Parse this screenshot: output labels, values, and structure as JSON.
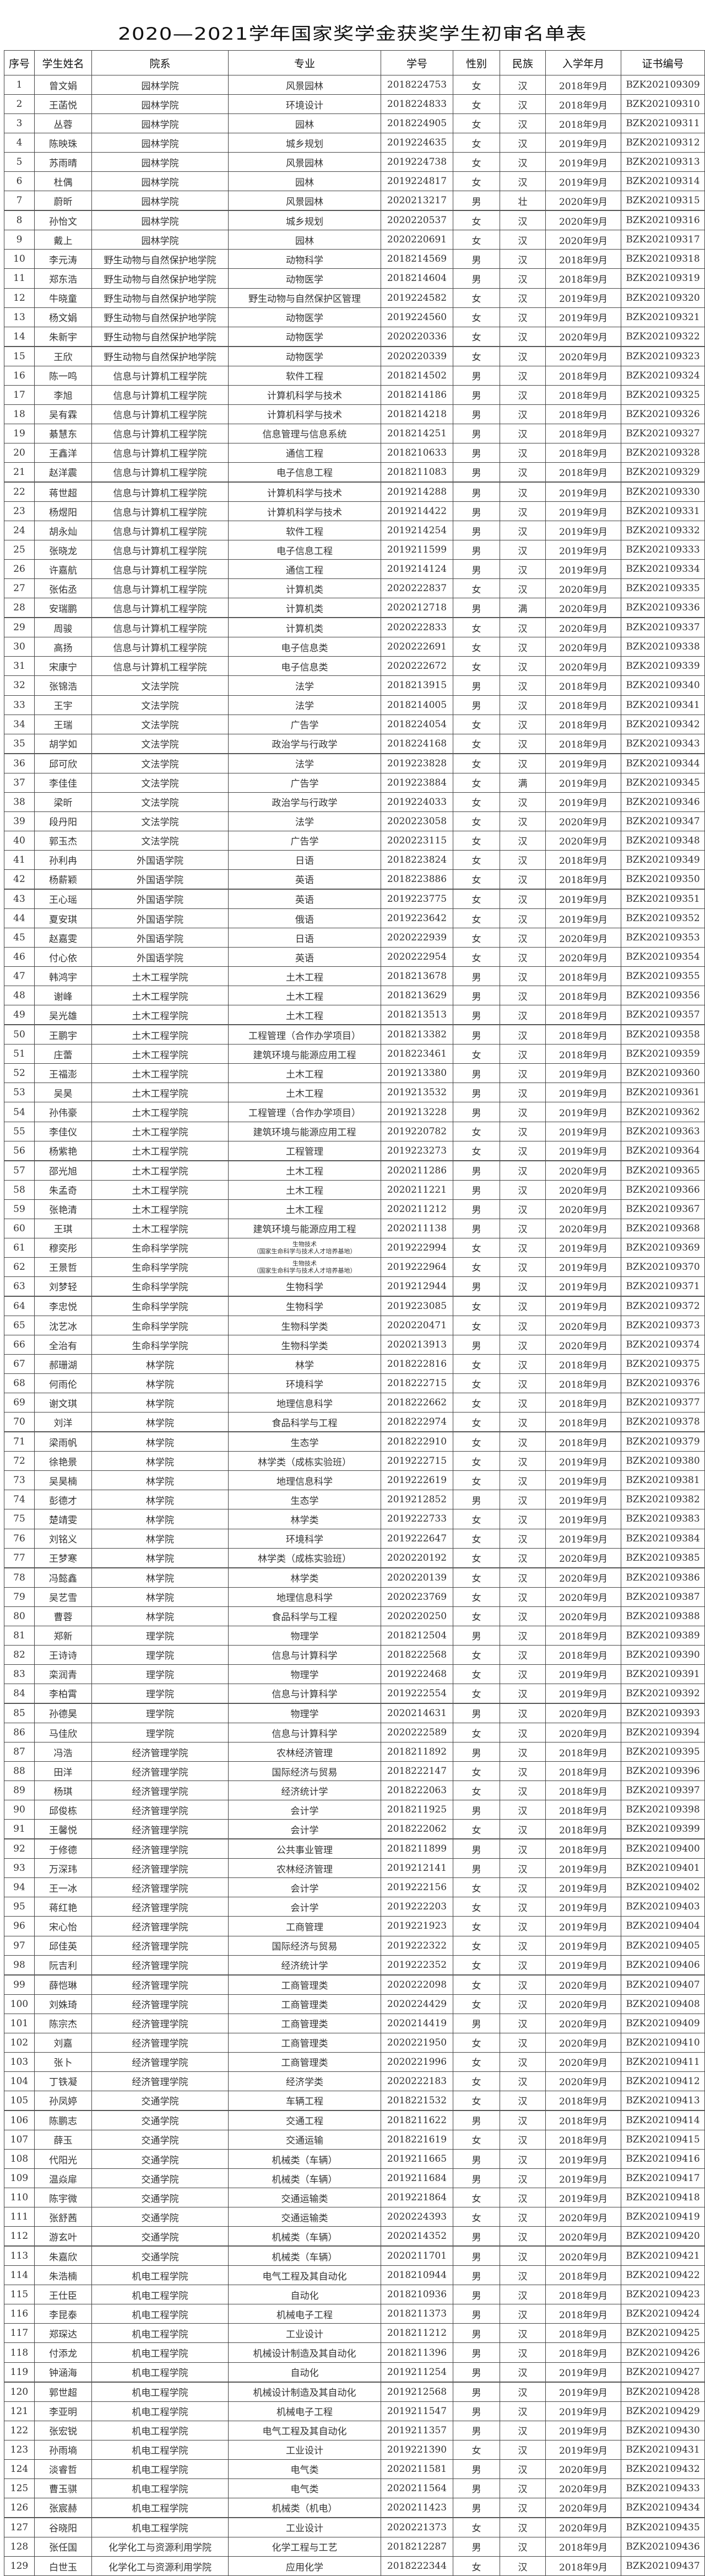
{
  "title": "2020—2021学年国家奖学金获奖学生初审名单表",
  "columns": [
    "序号",
    "学生姓名",
    "院系",
    "专业",
    "学号",
    "性别",
    "民族",
    "入学年月",
    "证书编号"
  ],
  "rows": [
    [
      "1",
      "曾文娟",
      "园林学院",
      "风景园林",
      "2018224753",
      "女",
      "汉",
      "2018年9月",
      "BZK202109309"
    ],
    [
      "2",
      "王菡悦",
      "园林学院",
      "环境设计",
      "2018224833",
      "女",
      "汉",
      "2018年9月",
      "BZK202109310"
    ],
    [
      "3",
      "丛蓉",
      "园林学院",
      "园林",
      "2018224905",
      "女",
      "汉",
      "2018年9月",
      "BZK202109311"
    ],
    [
      "4",
      "陈映珠",
      "园林学院",
      "城乡规划",
      "2019224635",
      "女",
      "汉",
      "2019年9月",
      "BZK202109312"
    ],
    [
      "5",
      "苏雨晴",
      "园林学院",
      "风景园林",
      "2019224738",
      "女",
      "汉",
      "2019年9月",
      "BZK202109313"
    ],
    [
      "6",
      "杜偶",
      "园林学院",
      "园林",
      "2019224817",
      "女",
      "汉",
      "2019年9月",
      "BZK202109314"
    ],
    [
      "7",
      "蔚昕",
      "园林学院",
      "风景园林",
      "2020213217",
      "男",
      "壮",
      "2020年9月",
      "BZK202109315"
    ],
    [
      "8",
      "孙怡文",
      "园林学院",
      "城乡规划",
      "2020220537",
      "女",
      "汉",
      "2020年9月",
      "BZK202109316"
    ],
    [
      "9",
      "戴上",
      "园林学院",
      "园林",
      "2020220691",
      "女",
      "汉",
      "2020年9月",
      "BZK202109317"
    ],
    [
      "10",
      "李元涛",
      "野生动物与自然保护地学院",
      "动物科学",
      "2018214569",
      "男",
      "汉",
      "2018年9月",
      "BZK202109318"
    ],
    [
      "11",
      "郑东浩",
      "野生动物与自然保护地学院",
      "动物医学",
      "2018214604",
      "男",
      "汉",
      "2018年9月",
      "BZK202109319"
    ],
    [
      "12",
      "牛晓童",
      "野生动物与自然保护地学院",
      "野生动物与自然保护区管理",
      "2019224582",
      "女",
      "汉",
      "2019年9月",
      "BZK202109320"
    ],
    [
      "13",
      "杨文娟",
      "野生动物与自然保护地学院",
      "动物医学",
      "2019224560",
      "女",
      "汉",
      "2019年9月",
      "BZK202109321"
    ],
    [
      "14",
      "朱新宇",
      "野生动物与自然保护地学院",
      "动物医学",
      "2020220336",
      "女",
      "汉",
      "2020年9月",
      "BZK202109322"
    ],
    [
      "15",
      "王欣",
      "野生动物与自然保护地学院",
      "动物医学",
      "2020220339",
      "女",
      "汉",
      "2020年9月",
      "BZK202109323"
    ],
    [
      "16",
      "陈一鸣",
      "信息与计算机工程学院",
      "软件工程",
      "2018214502",
      "男",
      "汉",
      "2018年9月",
      "BZK202109324"
    ],
    [
      "17",
      "李旭",
      "信息与计算机工程学院",
      "计算机科学与技术",
      "2018214186",
      "男",
      "汉",
      "2018年9月",
      "BZK202109325"
    ],
    [
      "18",
      "吴有霖",
      "信息与计算机工程学院",
      "计算机科学与技术",
      "2018214218",
      "男",
      "汉",
      "2018年9月",
      "BZK202109326"
    ],
    [
      "19",
      "綦慧东",
      "信息与计算机工程学院",
      "信息管理与信息系统",
      "2018214251",
      "男",
      "汉",
      "2018年9月",
      "BZK202109327"
    ],
    [
      "20",
      "王鑫洋",
      "信息与计算机工程学院",
      "通信工程",
      "2018210633",
      "男",
      "汉",
      "2018年9月",
      "BZK202109328"
    ],
    [
      "21",
      "赵洋震",
      "信息与计算机工程学院",
      "电子信息工程",
      "2018211083",
      "男",
      "汉",
      "2018年9月",
      "BZK202109329"
    ],
    [
      "22",
      "蒋世超",
      "信息与计算机工程学院",
      "计算机科学与技术",
      "2019214288",
      "男",
      "汉",
      "2019年9月",
      "BZK202109330"
    ],
    [
      "23",
      "杨煜阳",
      "信息与计算机工程学院",
      "计算机科学与技术",
      "2019214422",
      "男",
      "汉",
      "2019年9月",
      "BZK202109331"
    ],
    [
      "24",
      "胡永灿",
      "信息与计算机工程学院",
      "软件工程",
      "2019214254",
      "男",
      "汉",
      "2019年9月",
      "BZK202109332"
    ],
    [
      "25",
      "张晓龙",
      "信息与计算机工程学院",
      "电子信息工程",
      "2019211599",
      "男",
      "汉",
      "2019年9月",
      "BZK202109333"
    ],
    [
      "26",
      "许嘉航",
      "信息与计算机工程学院",
      "通信工程",
      "2019214124",
      "男",
      "汉",
      "2019年9月",
      "BZK202109334"
    ],
    [
      "27",
      "张佑丞",
      "信息与计算机工程学院",
      "计算机类",
      "2020222837",
      "女",
      "汉",
      "2020年9月",
      "BZK202109335"
    ],
    [
      "28",
      "安瑞鹏",
      "信息与计算机工程学院",
      "计算机类",
      "2020212718",
      "男",
      "满",
      "2020年9月",
      "BZK202109336"
    ],
    [
      "29",
      "周骏",
      "信息与计算机工程学院",
      "计算机类",
      "2020222833",
      "女",
      "汉",
      "2020年9月",
      "BZK202109337"
    ],
    [
      "30",
      "高扬",
      "信息与计算机工程学院",
      "电子信息类",
      "2020222691",
      "女",
      "汉",
      "2020年9月",
      "BZK202109338"
    ],
    [
      "31",
      "宋康宁",
      "信息与计算机工程学院",
      "电子信息类",
      "2020222672",
      "女",
      "汉",
      "2020年9月",
      "BZK202109339"
    ],
    [
      "32",
      "张锦浩",
      "文法学院",
      "法学",
      "2018213915",
      "男",
      "汉",
      "2018年9月",
      "BZK202109340"
    ],
    [
      "33",
      "王宇",
      "文法学院",
      "法学",
      "2018214005",
      "男",
      "汉",
      "2018年9月",
      "BZK202109341"
    ],
    [
      "34",
      "王瑞",
      "文法学院",
      "广告学",
      "2018224054",
      "女",
      "汉",
      "2018年9月",
      "BZK202109342"
    ],
    [
      "35",
      "胡学如",
      "文法学院",
      "政治学与行政学",
      "2018224168",
      "女",
      "汉",
      "2018年9月",
      "BZK202109343"
    ],
    [
      "36",
      "邱可欣",
      "文法学院",
      "法学",
      "2019223828",
      "女",
      "汉",
      "2019年9月",
      "BZK202109344"
    ],
    [
      "37",
      "李佳佳",
      "文法学院",
      "广告学",
      "2019223884",
      "女",
      "满",
      "2019年9月",
      "BZK202109345"
    ],
    [
      "38",
      "梁昕",
      "文法学院",
      "政治学与行政学",
      "2019224033",
      "女",
      "汉",
      "2019年9月",
      "BZK202109346"
    ],
    [
      "39",
      "段丹阳",
      "文法学院",
      "法学",
      "2020223058",
      "女",
      "汉",
      "2020年9月",
      "BZK202109347"
    ],
    [
      "40",
      "郭玉杰",
      "文法学院",
      "广告学",
      "2020223115",
      "女",
      "汉",
      "2020年9月",
      "BZK202109348"
    ],
    [
      "41",
      "孙利冉",
      "外国语学院",
      "日语",
      "2018223824",
      "女",
      "汉",
      "2018年9月",
      "BZK202109349"
    ],
    [
      "42",
      "杨薪颖",
      "外国语学院",
      "英语",
      "2018223886",
      "女",
      "汉",
      "2018年9月",
      "BZK202109350"
    ],
    [
      "43",
      "王心瑶",
      "外国语学院",
      "英语",
      "2019223775",
      "女",
      "汉",
      "2019年9月",
      "BZK202109351"
    ],
    [
      "44",
      "夏安琪",
      "外国语学院",
      "俄语",
      "2019223642",
      "女",
      "汉",
      "2019年9月",
      "BZK202109352"
    ],
    [
      "45",
      "赵嘉雯",
      "外国语学院",
      "日语",
      "2020222939",
      "女",
      "汉",
      "2020年9月",
      "BZK202109353"
    ],
    [
      "46",
      "付心依",
      "外国语学院",
      "英语",
      "2020222954",
      "女",
      "汉",
      "2020年9月",
      "BZK202109354"
    ],
    [
      "47",
      "韩鸿宇",
      "土木工程学院",
      "土木工程",
      "2018213678",
      "男",
      "汉",
      "2018年9月",
      "BZK202109355"
    ],
    [
      "48",
      "谢峰",
      "土木工程学院",
      "土木工程",
      "2018213629",
      "男",
      "汉",
      "2018年9月",
      "BZK202109356"
    ],
    [
      "49",
      "吴光雄",
      "土木工程学院",
      "土木工程",
      "2018213513",
      "男",
      "汉",
      "2018年9月",
      "BZK202109357"
    ],
    [
      "50",
      "王鹏宇",
      "土木工程学院",
      "工程管理（合作办学项目）",
      "2018213382",
      "男",
      "汉",
      "2018年9月",
      "BZK202109358"
    ],
    [
      "51",
      "庄蕾",
      "土木工程学院",
      "建筑环境与能源应用工程",
      "2018223461",
      "女",
      "汉",
      "2018年9月",
      "BZK202109359"
    ],
    [
      "52",
      "王福澎",
      "土木工程学院",
      "土木工程",
      "2019213380",
      "男",
      "汉",
      "2019年9月",
      "BZK202109360"
    ],
    [
      "53",
      "吴昊",
      "土木工程学院",
      "土木工程",
      "2019213532",
      "男",
      "汉",
      "2019年9月",
      "BZK202109361"
    ],
    [
      "54",
      "孙伟豪",
      "土木工程学院",
      "工程管理（合作办学项目）",
      "2019213228",
      "男",
      "汉",
      "2019年9月",
      "BZK202109362"
    ],
    [
      "55",
      "李佳仪",
      "土木工程学院",
      "建筑环境与能源应用工程",
      "2019220782",
      "女",
      "汉",
      "2019年9月",
      "BZK202109363"
    ],
    [
      "56",
      "杨紫艳",
      "土木工程学院",
      "工程管理",
      "2019223273",
      "女",
      "汉",
      "2019年9月",
      "BZK202109364"
    ],
    [
      "57",
      "邵光旭",
      "土木工程学院",
      "土木工程",
      "2020211286",
      "男",
      "汉",
      "2020年9月",
      "BZK202109365"
    ],
    [
      "58",
      "朱孟奇",
      "土木工程学院",
      "土木工程",
      "2020211221",
      "男",
      "汉",
      "2020年9月",
      "BZK202109366"
    ],
    [
      "59",
      "张艳清",
      "土木工程学院",
      "土木工程",
      "2020211212",
      "男",
      "汉",
      "2020年9月",
      "BZK202109367"
    ],
    [
      "60",
      "王琪",
      "土木工程学院",
      "建筑环境与能源应用工程",
      "2020211138",
      "男",
      "汉",
      "2020年9月",
      "BZK202109368"
    ],
    [
      "61",
      "穆奕彤",
      "生命科学学院",
      "生物技术\n（国家生命科学与技术人才培养基地）",
      "2019222994",
      "女",
      "汉",
      "2019年9月",
      "BZK202109369"
    ],
    [
      "62",
      "王景哲",
      "生命科学学院",
      "生物技术\n（国家生命科学与技术人才培养基地）",
      "2019222964",
      "女",
      "汉",
      "2019年9月",
      "BZK202109370"
    ],
    [
      "63",
      "刘梦轻",
      "生命科学学院",
      "生物科学",
      "2019212944",
      "男",
      "汉",
      "2019年9月",
      "BZK202109371"
    ],
    [
      "64",
      "李忠悦",
      "生命科学学院",
      "生物科学",
      "2019223085",
      "女",
      "汉",
      "2019年9月",
      "BZK202109372"
    ],
    [
      "65",
      "沈艺冰",
      "生命科学学院",
      "生物科学类",
      "2020220471",
      "女",
      "汉",
      "2020年9月",
      "BZK202109373"
    ],
    [
      "66",
      "全治有",
      "生命科学学院",
      "生物科学类",
      "2020213913",
      "男",
      "汉",
      "2020年9月",
      "BZK202109374"
    ],
    [
      "67",
      "郝珊湖",
      "林学院",
      "林学",
      "2018222816",
      "女",
      "汉",
      "2018年9月",
      "BZK202109375"
    ],
    [
      "68",
      "何雨伦",
      "林学院",
      "环境科学",
      "2018222715",
      "女",
      "汉",
      "2018年9月",
      "BZK202109376"
    ],
    [
      "69",
      "谢文琪",
      "林学院",
      "地理信息科学",
      "2018222662",
      "女",
      "汉",
      "2018年9月",
      "BZK202109377"
    ],
    [
      "70",
      "刘洋",
      "林学院",
      "食品科学与工程",
      "2018222974",
      "女",
      "汉",
      "2018年9月",
      "BZK202109378"
    ],
    [
      "71",
      "梁雨帆",
      "林学院",
      "生态学",
      "2018222910",
      "女",
      "汉",
      "2018年9月",
      "BZK202109379"
    ],
    [
      "72",
      "徐艳景",
      "林学院",
      "林学类（成栋实验班）",
      "2019222715",
      "女",
      "汉",
      "2019年9月",
      "BZK202109380"
    ],
    [
      "73",
      "吴昊楠",
      "林学院",
      "地理信息科学",
      "2019222619",
      "女",
      "汉",
      "2019年9月",
      "BZK202109381"
    ],
    [
      "74",
      "彭德才",
      "林学院",
      "生态学",
      "2019212852",
      "男",
      "汉",
      "2019年9月",
      "BZK202109382"
    ],
    [
      "75",
      "楚靖雯",
      "林学院",
      "林学类",
      "2019222733",
      "女",
      "汉",
      "2019年9月",
      "BZK202109383"
    ],
    [
      "76",
      "刘铭义",
      "林学院",
      "环境科学",
      "2019222647",
      "女",
      "汉",
      "2019年9月",
      "BZK202109384"
    ],
    [
      "77",
      "王梦寒",
      "林学院",
      "林学类（成栋实验班）",
      "2020220192",
      "女",
      "汉",
      "2020年9月",
      "BZK202109385"
    ],
    [
      "78",
      "冯懿鑫",
      "林学院",
      "林学类",
      "2020220139",
      "女",
      "汉",
      "2020年9月",
      "BZK202109386"
    ],
    [
      "79",
      "吴艺雪",
      "林学院",
      "地理信息科学",
      "2020223769",
      "女",
      "汉",
      "2020年9月",
      "BZK202109387"
    ],
    [
      "80",
      "曹蓉",
      "林学院",
      "食品科学与工程",
      "2020220250",
      "女",
      "汉",
      "2020年9月",
      "BZK202109388"
    ],
    [
      "81",
      "郑新",
      "理学院",
      "物理学",
      "2018212504",
      "男",
      "汉",
      "2018年9月",
      "BZK202109389"
    ],
    [
      "82",
      "王诗诗",
      "理学院",
      "信息与计算科学",
      "2018222568",
      "女",
      "汉",
      "2018年9月",
      "BZK202109390"
    ],
    [
      "83",
      "栾润青",
      "理学院",
      "物理学",
      "2019222468",
      "女",
      "汉",
      "2019年9月",
      "BZK202109391"
    ],
    [
      "84",
      "李柏霄",
      "理学院",
      "信息与计算科学",
      "2019222554",
      "女",
      "汉",
      "2019年9月",
      "BZK202109392"
    ],
    [
      "85",
      "孙德昊",
      "理学院",
      "物理学",
      "2020214631",
      "男",
      "汉",
      "2020年9月",
      "BZK202109393"
    ],
    [
      "86",
      "马佳欣",
      "理学院",
      "信息与计算科学",
      "2020222589",
      "女",
      "汉",
      "2020年9月",
      "BZK202109394"
    ],
    [
      "87",
      "冯浩",
      "经济管理学院",
      "农林经济管理",
      "2018211892",
      "男",
      "汉",
      "2018年9月",
      "BZK202109395"
    ],
    [
      "88",
      "田洋",
      "经济管理学院",
      "国际经济与贸易",
      "2018222147",
      "女",
      "汉",
      "2018年9月",
      "BZK202109396"
    ],
    [
      "89",
      "杨琪",
      "经济管理学院",
      "经济统计学",
      "2018222063",
      "女",
      "汉",
      "2018年9月",
      "BZK202109397"
    ],
    [
      "90",
      "邱俊栋",
      "经济管理学院",
      "会计学",
      "2018211925",
      "男",
      "汉",
      "2018年9月",
      "BZK202109398"
    ],
    [
      "91",
      "王馨悦",
      "经济管理学院",
      "会计学",
      "2018222062",
      "女",
      "汉",
      "2018年9月",
      "BZK202109399"
    ],
    [
      "92",
      "于修德",
      "经济管理学院",
      "公共事业管理",
      "2018211899",
      "男",
      "汉",
      "2018年9月",
      "BZK202109400"
    ],
    [
      "93",
      "万深玮",
      "经济管理学院",
      "农林经济管理",
      "2019212141",
      "男",
      "汉",
      "2019年9月",
      "BZK202109401"
    ],
    [
      "94",
      "王一冰",
      "经济管理学院",
      "会计学",
      "2019222156",
      "女",
      "汉",
      "2019年9月",
      "BZK202109402"
    ],
    [
      "95",
      "蒋红艳",
      "经济管理学院",
      "会计学",
      "2019222203",
      "女",
      "汉",
      "2019年9月",
      "BZK202109403"
    ],
    [
      "96",
      "宋心怡",
      "经济管理学院",
      "工商管理",
      "2019221923",
      "女",
      "汉",
      "2019年9月",
      "BZK202109404"
    ],
    [
      "97",
      "邱佳英",
      "经济管理学院",
      "国际经济与贸易",
      "2019222322",
      "女",
      "汉",
      "2019年9月",
      "BZK202109405"
    ],
    [
      "98",
      "阮吉利",
      "经济管理学院",
      "经济统计学",
      "2019222352",
      "女",
      "汉",
      "2019年9月",
      "BZK202109406"
    ],
    [
      "99",
      "薛恺琳",
      "经济管理学院",
      "工商管理类",
      "2020222098",
      "女",
      "汉",
      "2020年9月",
      "BZK202109407"
    ],
    [
      "100",
      "刘姝琦",
      "经济管理学院",
      "工商管理类",
      "2020224429",
      "女",
      "汉",
      "2020年9月",
      "BZK202109408"
    ],
    [
      "101",
      "陈宗杰",
      "经济管理学院",
      "工商管理类",
      "2020214419",
      "男",
      "汉",
      "2020年9月",
      "BZK202109409"
    ],
    [
      "102",
      "刘嘉",
      "经济管理学院",
      "工商管理类",
      "2020221950",
      "女",
      "汉",
      "2020年9月",
      "BZK202109410"
    ],
    [
      "103",
      "张卜",
      "经济管理学院",
      "工商管理类",
      "2020221996",
      "女",
      "汉",
      "2020年9月",
      "BZK202109411"
    ],
    [
      "104",
      "丁铁凝",
      "经济管理学院",
      "经济学类",
      "2020222183",
      "女",
      "汉",
      "2020年9月",
      "BZK202109412"
    ],
    [
      "105",
      "孙凤婷",
      "交通学院",
      "车辆工程",
      "2018221532",
      "女",
      "汉",
      "2018年9月",
      "BZK202109413"
    ],
    [
      "106",
      "陈鹏志",
      "交通学院",
      "交通工程",
      "2018211622",
      "男",
      "汉",
      "2018年9月",
      "BZK202109414"
    ],
    [
      "107",
      "薛玉",
      "交通学院",
      "交通运输",
      "2018221619",
      "女",
      "汉",
      "2018年9月",
      "BZK202109415"
    ],
    [
      "108",
      "代阳光",
      "交通学院",
      "机械类（车辆）",
      "2019211665",
      "男",
      "汉",
      "2019年9月",
      "BZK202109416"
    ],
    [
      "109",
      "温焱扉",
      "交通学院",
      "机械类（车辆）",
      "2019211684",
      "男",
      "汉",
      "2019年9月",
      "BZK202109417"
    ],
    [
      "110",
      "陈宇微",
      "交通学院",
      "交通运输类",
      "2019221864",
      "女",
      "汉",
      "2019年9月",
      "BZK202109418"
    ],
    [
      "111",
      "张舒茜",
      "交通学院",
      "交通运输类",
      "2020224393",
      "女",
      "汉",
      "2020年9月",
      "BZK202109419"
    ],
    [
      "112",
      "游玄叶",
      "交通学院",
      "机械类（车辆）",
      "2020214352",
      "男",
      "汉",
      "2020年9月",
      "BZK202109420"
    ],
    [
      "113",
      "朱嘉欣",
      "交通学院",
      "机械类（车辆）",
      "2020211701",
      "男",
      "汉",
      "2020年9月",
      "BZK202109421"
    ],
    [
      "114",
      "朱浩楠",
      "机电工程学院",
      "电气工程及其自动化",
      "2018210944",
      "男",
      "汉",
      "2018年9月",
      "BZK202109422"
    ],
    [
      "115",
      "王仕臣",
      "机电工程学院",
      "自动化",
      "2018210936",
      "男",
      "汉",
      "2018年9月",
      "BZK202109423"
    ],
    [
      "116",
      "李昆泰",
      "机电工程学院",
      "机械电子工程",
      "2018211373",
      "男",
      "汉",
      "2018年9月",
      "BZK202109424"
    ],
    [
      "117",
      "郑琛达",
      "机电工程学院",
      "工业设计",
      "2018211212",
      "男",
      "汉",
      "2018年9月",
      "BZK202109425"
    ],
    [
      "118",
      "付添龙",
      "机电工程学院",
      "机械设计制造及其自动化",
      "2018211396",
      "男",
      "汉",
      "2018年9月",
      "BZK202109426"
    ],
    [
      "119",
      "钟涵海",
      "机电工程学院",
      "自动化",
      "2019211254",
      "男",
      "汉",
      "2019年9月",
      "BZK202109427"
    ],
    [
      "120",
      "郭世超",
      "机电工程学院",
      "机械设计制造及其自动化",
      "2019212568",
      "男",
      "汉",
      "2019年9月",
      "BZK202109428"
    ],
    [
      "121",
      "李亚明",
      "机电工程学院",
      "机械电子工程",
      "2019211547",
      "男",
      "汉",
      "2019年9月",
      "BZK202109429"
    ],
    [
      "122",
      "张宏锐",
      "机电工程学院",
      "电气工程及其自动化",
      "2019211357",
      "男",
      "汉",
      "2019年9月",
      "BZK202109430"
    ],
    [
      "123",
      "孙雨墒",
      "机电工程学院",
      "工业设计",
      "2019221390",
      "女",
      "汉",
      "2019年9月",
      "BZK202109431"
    ],
    [
      "124",
      "淡睿哲",
      "机电工程学院",
      "电气类",
      "2020211581",
      "男",
      "汉",
      "2020年9月",
      "BZK202109432"
    ],
    [
      "125",
      "曹玉骐",
      "机电工程学院",
      "电气类",
      "2020211564",
      "男",
      "汉",
      "2020年9月",
      "BZK202109433"
    ],
    [
      "126",
      "张宸赫",
      "机电工程学院",
      "机械类（机电）",
      "2020211423",
      "男",
      "汉",
      "2020年9月",
      "BZK202109434"
    ],
    [
      "127",
      "谷晓阳",
      "机电工程学院",
      "工业设计",
      "2020221373",
      "女",
      "汉",
      "2020年9月",
      "BZK202109435"
    ],
    [
      "128",
      "张任国",
      "化学化工与资源利用学院",
      "化学工程与工艺",
      "2018212287",
      "男",
      "汉",
      "2018年9月",
      "BZK202109436"
    ],
    [
      "129",
      "白世玉",
      "化学化工与资源利用学院",
      "应用化学",
      "2018222344",
      "女",
      "汉",
      "2018年9月",
      "BZK202109437"
    ]
  ]
}
